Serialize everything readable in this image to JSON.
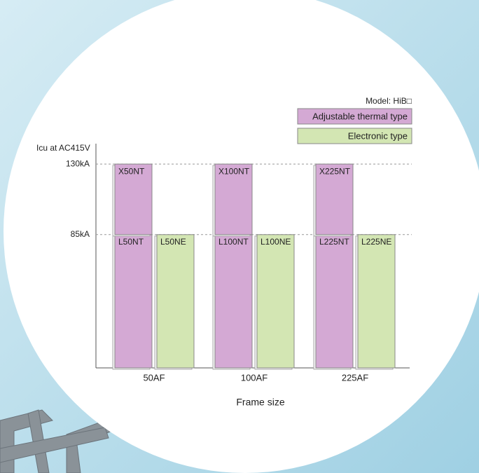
{
  "chart_data": {
    "type": "bar",
    "y_label": "Icu at AC415V",
    "x_label": "Frame size",
    "note": "Model: HiB□",
    "categories": [
      "50AF",
      "100AF",
      "225AF"
    ],
    "series": [
      {
        "name": "Adjustable thermal type",
        "color": "#d4a9d4",
        "values": [
          85,
          85,
          85
        ],
        "bar_labels": [
          "L50NT",
          "L100NT",
          "L225NT"
        ]
      },
      {
        "color": "#d4a9d4",
        "values": [
          45,
          45,
          45
        ],
        "bar_labels": [
          "X50NT",
          "X100NT",
          "X225NT"
        ],
        "stacked": true
      },
      {
        "name": "Electronic type",
        "color": "#d3e6b3",
        "values": [
          85,
          85,
          85
        ],
        "bar_labels": [
          "L50NE",
          "L100NE",
          "L225NE"
        ]
      }
    ],
    "ylim": [
      0,
      143
    ],
    "yticks": [
      {
        "value": 85,
        "label": "85kA"
      },
      {
        "value": 130,
        "label": "130kA"
      }
    ],
    "grid": true,
    "legend": "top-right"
  }
}
